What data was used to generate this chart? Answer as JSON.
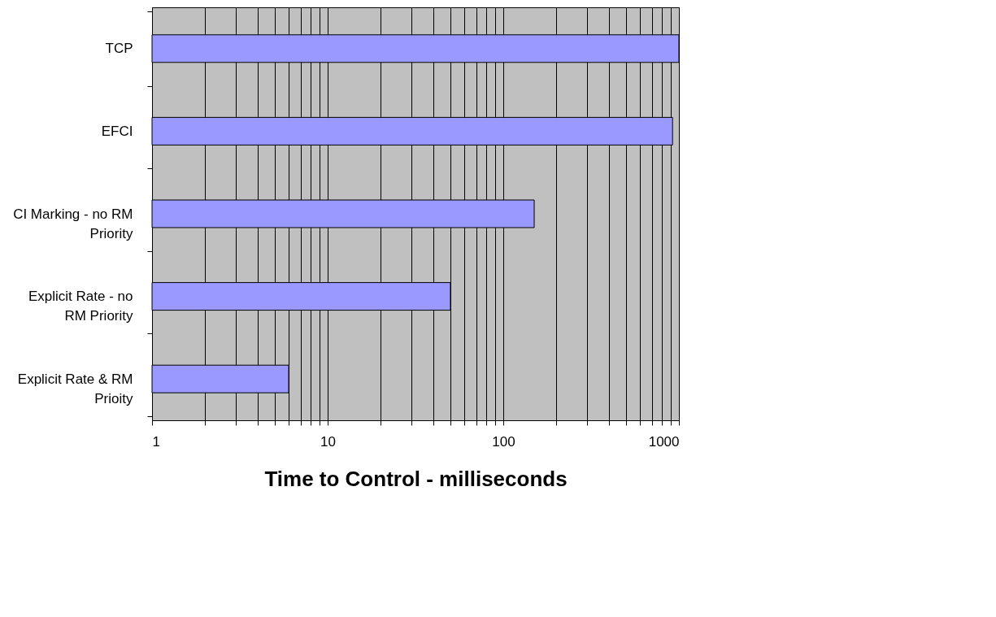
{
  "chart_data": {
    "type": "bar",
    "orientation": "horizontal",
    "xlabel": "Time to Control - milliseconds",
    "categories": [
      "TCP",
      "EFCI",
      "CI Marking - no RM Priority",
      "Explicit Rate - no RM Priority",
      "Explicit Rate & RM Prioity"
    ],
    "values": [
      1000,
      920,
      150,
      50,
      6
    ],
    "color": "#9999ff",
    "log": "x",
    "xlim": [
      1,
      1000
    ],
    "xticks": [
      1,
      {
        "value": 2,
        "label": null
      },
      {
        "value": 3,
        "label": null
      },
      {
        "value": 4,
        "label": null
      },
      {
        "value": 5,
        "label": null
      },
      {
        "value": 6,
        "label": null
      },
      {
        "value": 7,
        "label": null
      },
      {
        "value": 8,
        "label": null
      },
      {
        "value": 9,
        "label": null
      },
      10,
      {
        "value": 20,
        "label": null
      },
      {
        "value": 30,
        "label": null
      },
      {
        "value": 40,
        "label": null
      },
      {
        "value": 50,
        "label": null
      },
      {
        "value": 60,
        "label": null
      },
      {
        "value": 70,
        "label": null
      },
      {
        "value": 80,
        "label": null
      },
      {
        "value": 90,
        "label": null
      },
      100,
      {
        "value": 200,
        "label": null
      },
      {
        "value": 300,
        "label": null
      },
      {
        "value": 400,
        "label": null
      },
      {
        "value": 500,
        "label": null
      },
      {
        "value": 600,
        "label": null
      },
      {
        "value": 700,
        "label": null
      },
      {
        "value": 800,
        "label": null
      },
      {
        "value": 900,
        "label": null
      },
      1000
    ],
    "grid": "x"
  }
}
